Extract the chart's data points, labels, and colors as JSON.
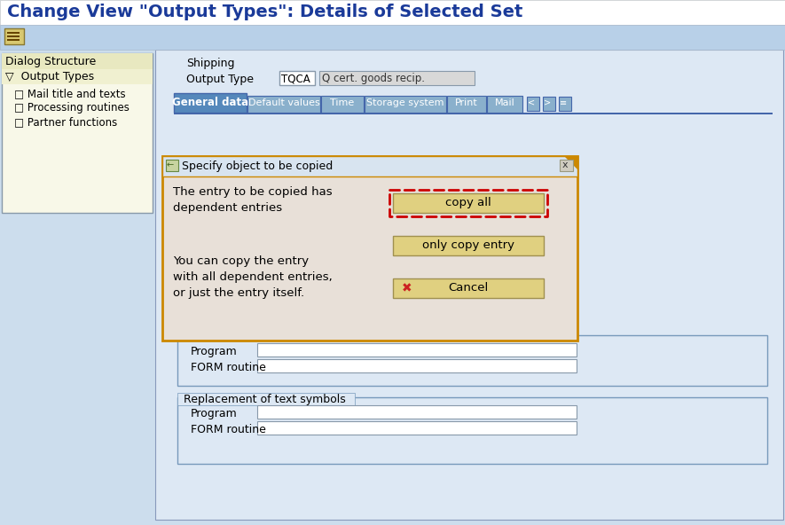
{
  "title": "Change View \"Output Types\": Details of Selected Set",
  "title_fg": "#1a3a99",
  "title_bg": "#ffffff",
  "title_fontsize": 14,
  "bg_main": "#ccdded",
  "bg_toolbar": "#b8d0e8",
  "bg_content": "#dde8f4",
  "bg_left_panel": "#f0f0c8",
  "bg_left_header": "#e8e8b0",
  "left_border": "#8899aa",
  "bg_right": "#dde8f4",
  "bg_dialog": "#e8e0d8",
  "dialog_border_outer": "#cc8800",
  "dialog_title_bg": "#d8e4f0",
  "dialog_title_fg": "#000000",
  "dialog_title": "Specify object to be copied",
  "btn_bg": "#e0d080",
  "btn_border": "#a09050",
  "btn_copy_all": "copy all",
  "btn_only_copy": "only copy entry",
  "btn_cancel": "Cancel",
  "copy_highlight": "#cc0000",
  "cancel_x_color": "#cc2222",
  "tab_active_bg": "#5588bb",
  "tab_active_fg": "#ffffff",
  "tab_inactive_bg": "#8ab0cc",
  "tab_inactive_fg": "#ffffff",
  "tabs": [
    "General data",
    "Default values",
    "Time",
    "Storage system",
    "Print",
    "Mail"
  ],
  "shipping_label": "Shipping",
  "output_type_label": "Output Type",
  "output_type_code": "TQCA",
  "output_type_desc": "Q cert. goods recip.",
  "dialog_text1": "The entry to be copied has",
  "dialog_text2": "dependent entries",
  "dialog_text3": "You can copy the entry",
  "dialog_text4": "with all dependent entries,",
  "dialog_text5": "or just the entry itself.",
  "program_label": "Program",
  "form_label": "FORM routine",
  "replacement_label": "Replacement of text symbols",
  "watermark_color": "#d4c8c8"
}
